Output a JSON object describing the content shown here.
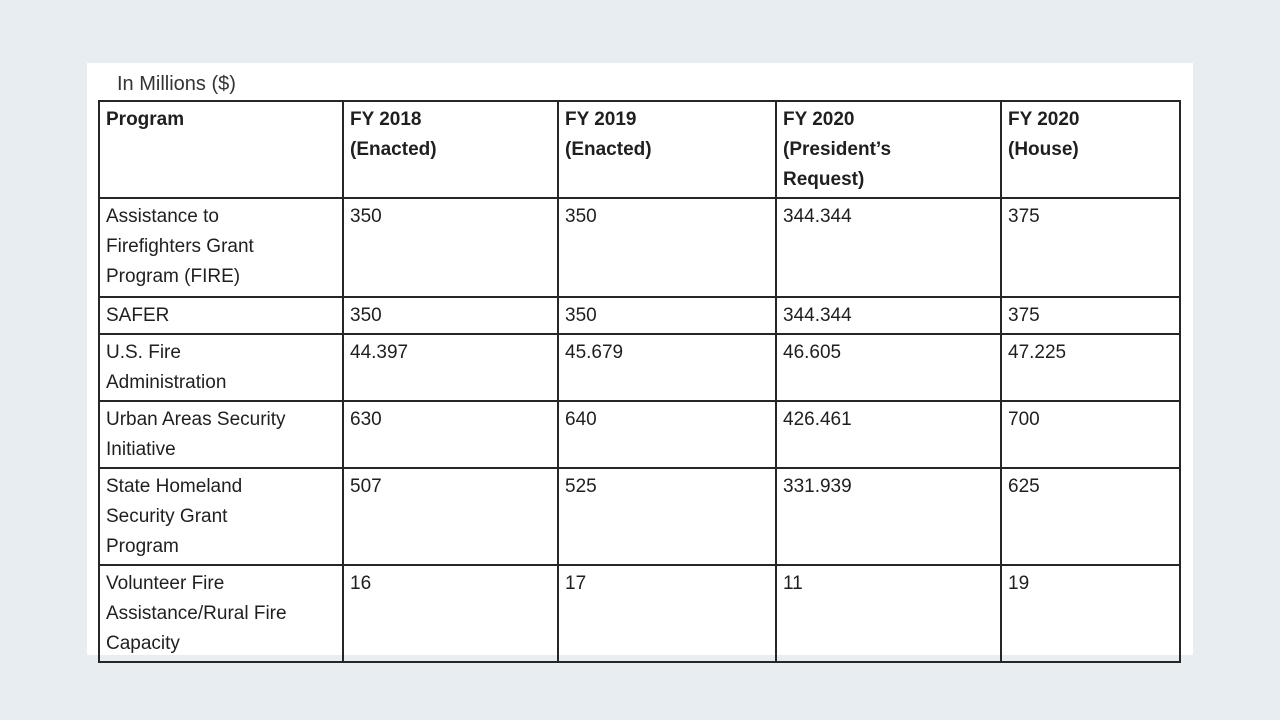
{
  "page": {
    "background_color": "#e8edf2",
    "card_color": "#ffffff",
    "border_color": "#262626",
    "text_color": "#1f1f1f"
  },
  "table": {
    "title": "In Millions ($)",
    "columns": [
      "Program",
      "FY 2018\n(Enacted)",
      "FY 2019\n(Enacted)",
      "FY 2020\n(President’s\nRequest)",
      "FY 2020\n(House)"
    ],
    "rows": [
      {
        "program": "Assistance to\nFirefighters Grant\nProgram (FIRE)",
        "values": [
          "350",
          "350",
          "344.344",
          "375"
        ]
      },
      {
        "program": "SAFER",
        "values": [
          "350",
          "350",
          "344.344",
          "375"
        ]
      },
      {
        "program": "U.S. Fire\nAdministration",
        "values": [
          "44.397",
          "45.679",
          "46.605",
          "47.225"
        ]
      },
      {
        "program": "Urban Areas Security\nInitiative",
        "values": [
          "630",
          "640",
          "426.461",
          "700"
        ]
      },
      {
        "program": "State Homeland\nSecurity Grant\nProgram",
        "values": [
          "507",
          "525",
          "331.939",
          "625"
        ]
      },
      {
        "program": "Volunteer Fire\nAssistance/Rural Fire\nCapacity",
        "values": [
          "16",
          "17",
          "11",
          "19"
        ]
      }
    ]
  }
}
